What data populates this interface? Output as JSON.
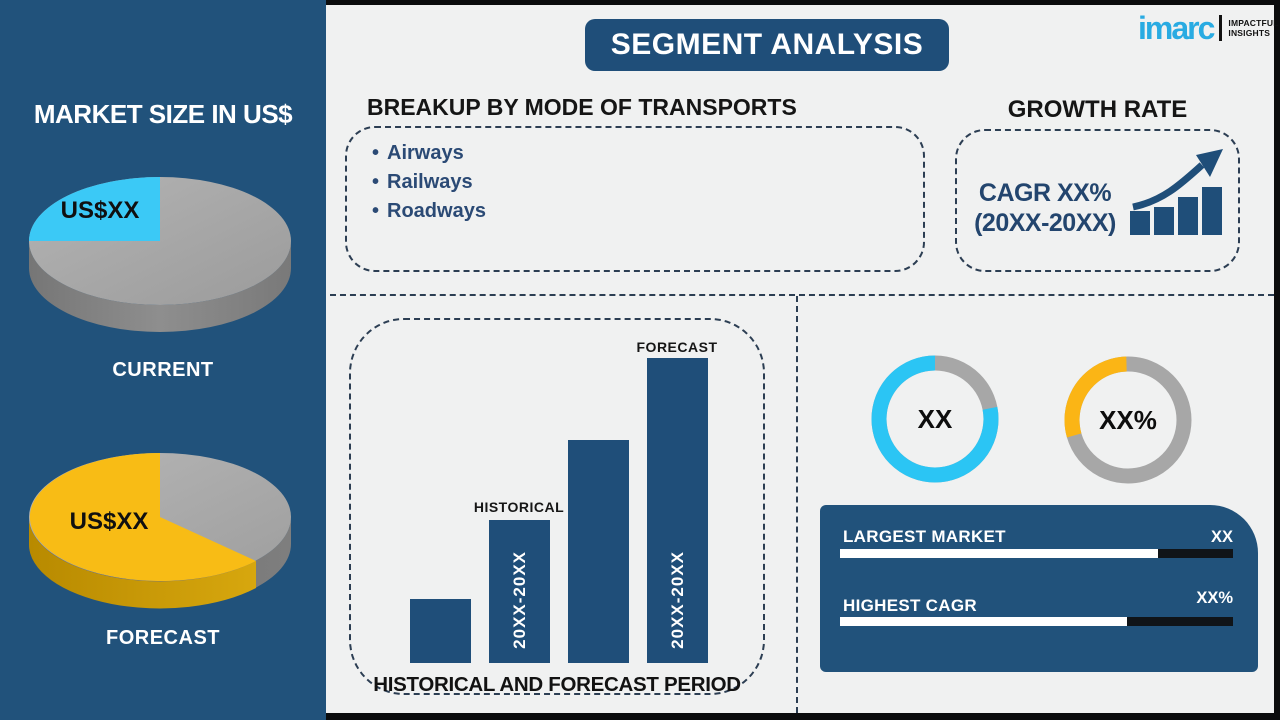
{
  "header": {
    "title": "SEGMENT ANALYSIS"
  },
  "logo": {
    "brand": "imarc",
    "tagline": [
      "IMPACTFUL",
      "INSIGHTS"
    ],
    "brand_color": "#29ABE2"
  },
  "sidebar": {
    "heading": "MARKET SIZE IN US$"
  },
  "transports": {
    "heading": "BREAKUP BY MODE OF TRANSPORTS",
    "items": [
      "Airways",
      "Railways",
      "Roadways"
    ]
  },
  "growth": {
    "heading": "GROWTH RATE",
    "cagr_label": "CAGR XX%",
    "period_label": "(20XX-20XX)"
  },
  "chart_data": [
    {
      "type": "pie",
      "title": "CURRENT",
      "slices": [
        {
          "label": "US$XX",
          "share_pct": 25,
          "color": "#3BC9F6"
        },
        {
          "label": "",
          "share_pct": 75,
          "color": "#A7A7A7"
        }
      ]
    },
    {
      "type": "pie",
      "title": "FORECAST",
      "slices": [
        {
          "label": "US$XX",
          "share_pct": 63,
          "color": "#F8BC15"
        },
        {
          "label": "",
          "share_pct": 37,
          "color": "#ABABAB"
        }
      ]
    },
    {
      "type": "bar",
      "title": "HISTORICAL AND FORECAST PERIOD",
      "categories": [
        "",
        "HISTORICAL",
        "",
        "FORECAST"
      ],
      "values_rel": [
        21,
        47,
        73,
        100
      ],
      "bar_texts": [
        "",
        "20XX-20XX",
        "",
        "20XX-20XX"
      ],
      "bar_color": "#1F4E79"
    },
    {
      "type": "donut",
      "center_label": "XX",
      "highlight_start_deg": 79,
      "segments": [
        {
          "color": "#2BC5F4",
          "share_pct": 78
        },
        {
          "color": "#A7A7A7",
          "share_pct": 22
        }
      ]
    },
    {
      "type": "donut",
      "center_label": "XX%",
      "highlight_start_deg": 254,
      "segments": [
        {
          "color": "#FBB515",
          "share_pct": 29
        },
        {
          "color": "#A7A7A7",
          "share_pct": 71
        }
      ]
    }
  ],
  "metrics": {
    "rows": [
      {
        "label": "LARGEST MARKET",
        "value": "XX",
        "progress_pct": 81
      },
      {
        "label": "HIGHEST CAGR",
        "value": "XX%",
        "progress_pct": 73
      }
    ]
  }
}
